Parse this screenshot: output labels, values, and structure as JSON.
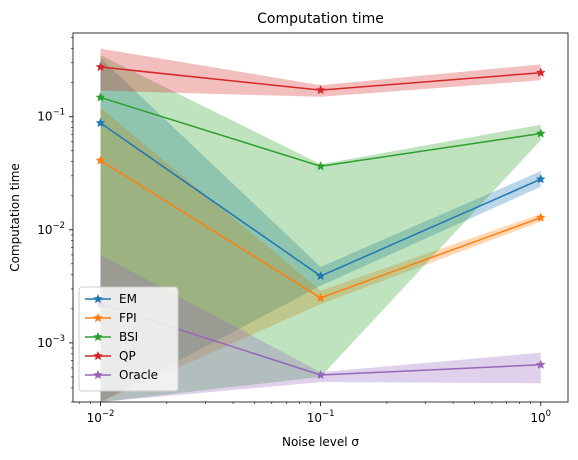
{
  "chart_data": {
    "type": "line",
    "title": "Computation time",
    "xlabel": "Noise level σ",
    "ylabel": "Computation time",
    "xscale": "log",
    "yscale": "log",
    "x": [
      0.01,
      0.1,
      1
    ],
    "xlim": [
      0.0075,
      1.33
    ],
    "ylim": [
      0.0003,
      0.55
    ],
    "xticks": [
      {
        "value": 0.01,
        "base": "10",
        "exp": "−2"
      },
      {
        "value": 0.1,
        "base": "10",
        "exp": "−1"
      },
      {
        "value": 1,
        "base": "10",
        "exp": "0"
      }
    ],
    "yticks": [
      {
        "value": 0.001,
        "base": "10",
        "exp": "−3"
      },
      {
        "value": 0.01,
        "base": "10",
        "exp": "−2"
      },
      {
        "value": 0.1,
        "base": "10",
        "exp": "−1"
      }
    ],
    "legend_position": "lower-left",
    "series": [
      {
        "name": "EM",
        "color": "#1f77b4",
        "values": [
          0.088,
          0.0039,
          0.028
        ],
        "lower": [
          0.0003,
          0.0032,
          0.024
        ],
        "upper": [
          0.33,
          0.0047,
          0.033
        ]
      },
      {
        "name": "FPI",
        "color": "#ff7f0e",
        "values": [
          0.041,
          0.0025,
          0.0128
        ],
        "lower": [
          0.0003,
          0.0022,
          0.0118
        ],
        "upper": [
          0.12,
          0.0029,
          0.0138
        ]
      },
      {
        "name": "BSI",
        "color": "#2ca02c",
        "values": [
          0.148,
          0.0365,
          0.071
        ],
        "lower": [
          0.0003,
          0.0005,
          0.062
        ],
        "upper": [
          0.35,
          0.038,
          0.085
        ]
      },
      {
        "name": "QP",
        "color": "#d62728",
        "values": [
          0.275,
          0.172,
          0.245
        ],
        "lower": [
          0.17,
          0.15,
          0.21
        ],
        "upper": [
          0.4,
          0.19,
          0.29
        ]
      },
      {
        "name": "Oracle",
        "color": "#9467bd",
        "values": [
          0.0022,
          0.00052,
          0.00064
        ],
        "lower": [
          0.0003,
          0.00045,
          0.00044
        ],
        "upper": [
          0.006,
          0.00055,
          0.00082
        ]
      }
    ]
  }
}
